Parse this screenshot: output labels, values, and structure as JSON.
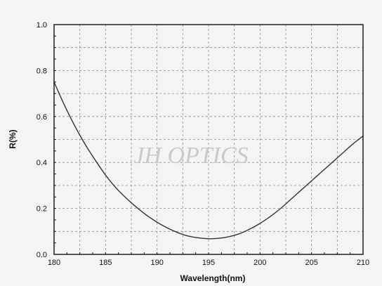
{
  "chart_data": {
    "type": "line",
    "xlabel": "Wavelength(nm)",
    "ylabel": "R(%)",
    "xlim": [
      180,
      210
    ],
    "ylim": [
      0.0,
      1.0
    ],
    "x_ticks": [
      "180",
      "185",
      "190",
      "195",
      "200",
      "205",
      "210"
    ],
    "y_ticks": [
      "0.0",
      "0.2",
      "0.4",
      "0.6",
      "0.8",
      "1.0"
    ],
    "grid": "dashed",
    "watermark": "JH OPTICS",
    "series": [
      {
        "x": [
          180,
          181,
          182,
          183,
          184,
          185,
          186,
          187,
          188,
          189,
          190,
          191,
          192,
          193,
          194,
          195,
          196,
          197,
          198,
          199,
          200,
          201,
          202,
          203,
          204,
          205,
          206,
          207,
          208,
          209,
          210
        ],
        "y": [
          0.75,
          0.65,
          0.56,
          0.48,
          0.41,
          0.345,
          0.29,
          0.245,
          0.205,
          0.17,
          0.14,
          0.115,
          0.095,
          0.08,
          0.072,
          0.068,
          0.07,
          0.077,
          0.09,
          0.11,
          0.135,
          0.165,
          0.2,
          0.24,
          0.28,
          0.32,
          0.36,
          0.4,
          0.44,
          0.48,
          0.515
        ],
        "color": "#333333"
      }
    ]
  }
}
